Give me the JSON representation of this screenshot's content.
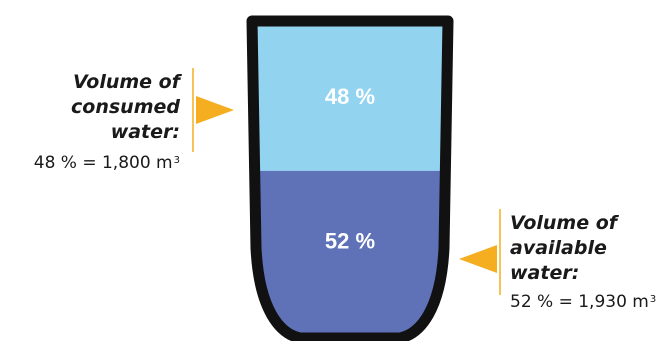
{
  "colors": {
    "consumed": "#92d3f0",
    "available": "#5f72b8",
    "outline": "#111111",
    "arrow": "#f4ae1f",
    "segment_label": "#ffffff"
  },
  "chart_data": {
    "type": "stacked-container",
    "unit": "%",
    "segments": [
      {
        "key": "consumed",
        "value": 48,
        "label": "48 %",
        "volume": 1800,
        "volume_unit": "m³"
      },
      {
        "key": "available",
        "value": 52,
        "label": "52 %",
        "volume": 1930,
        "volume_unit": "m³"
      }
    ]
  },
  "callouts": {
    "consumed": {
      "title_line1": "Volume of",
      "title_line2": "consumed water:",
      "value_text": "48 % = 1,800 m",
      "superscript": "3"
    },
    "available": {
      "title_line1": "Volume of",
      "title_line2": "available water:",
      "value_text": "52 % = 1,930 m",
      "superscript": "3"
    }
  }
}
